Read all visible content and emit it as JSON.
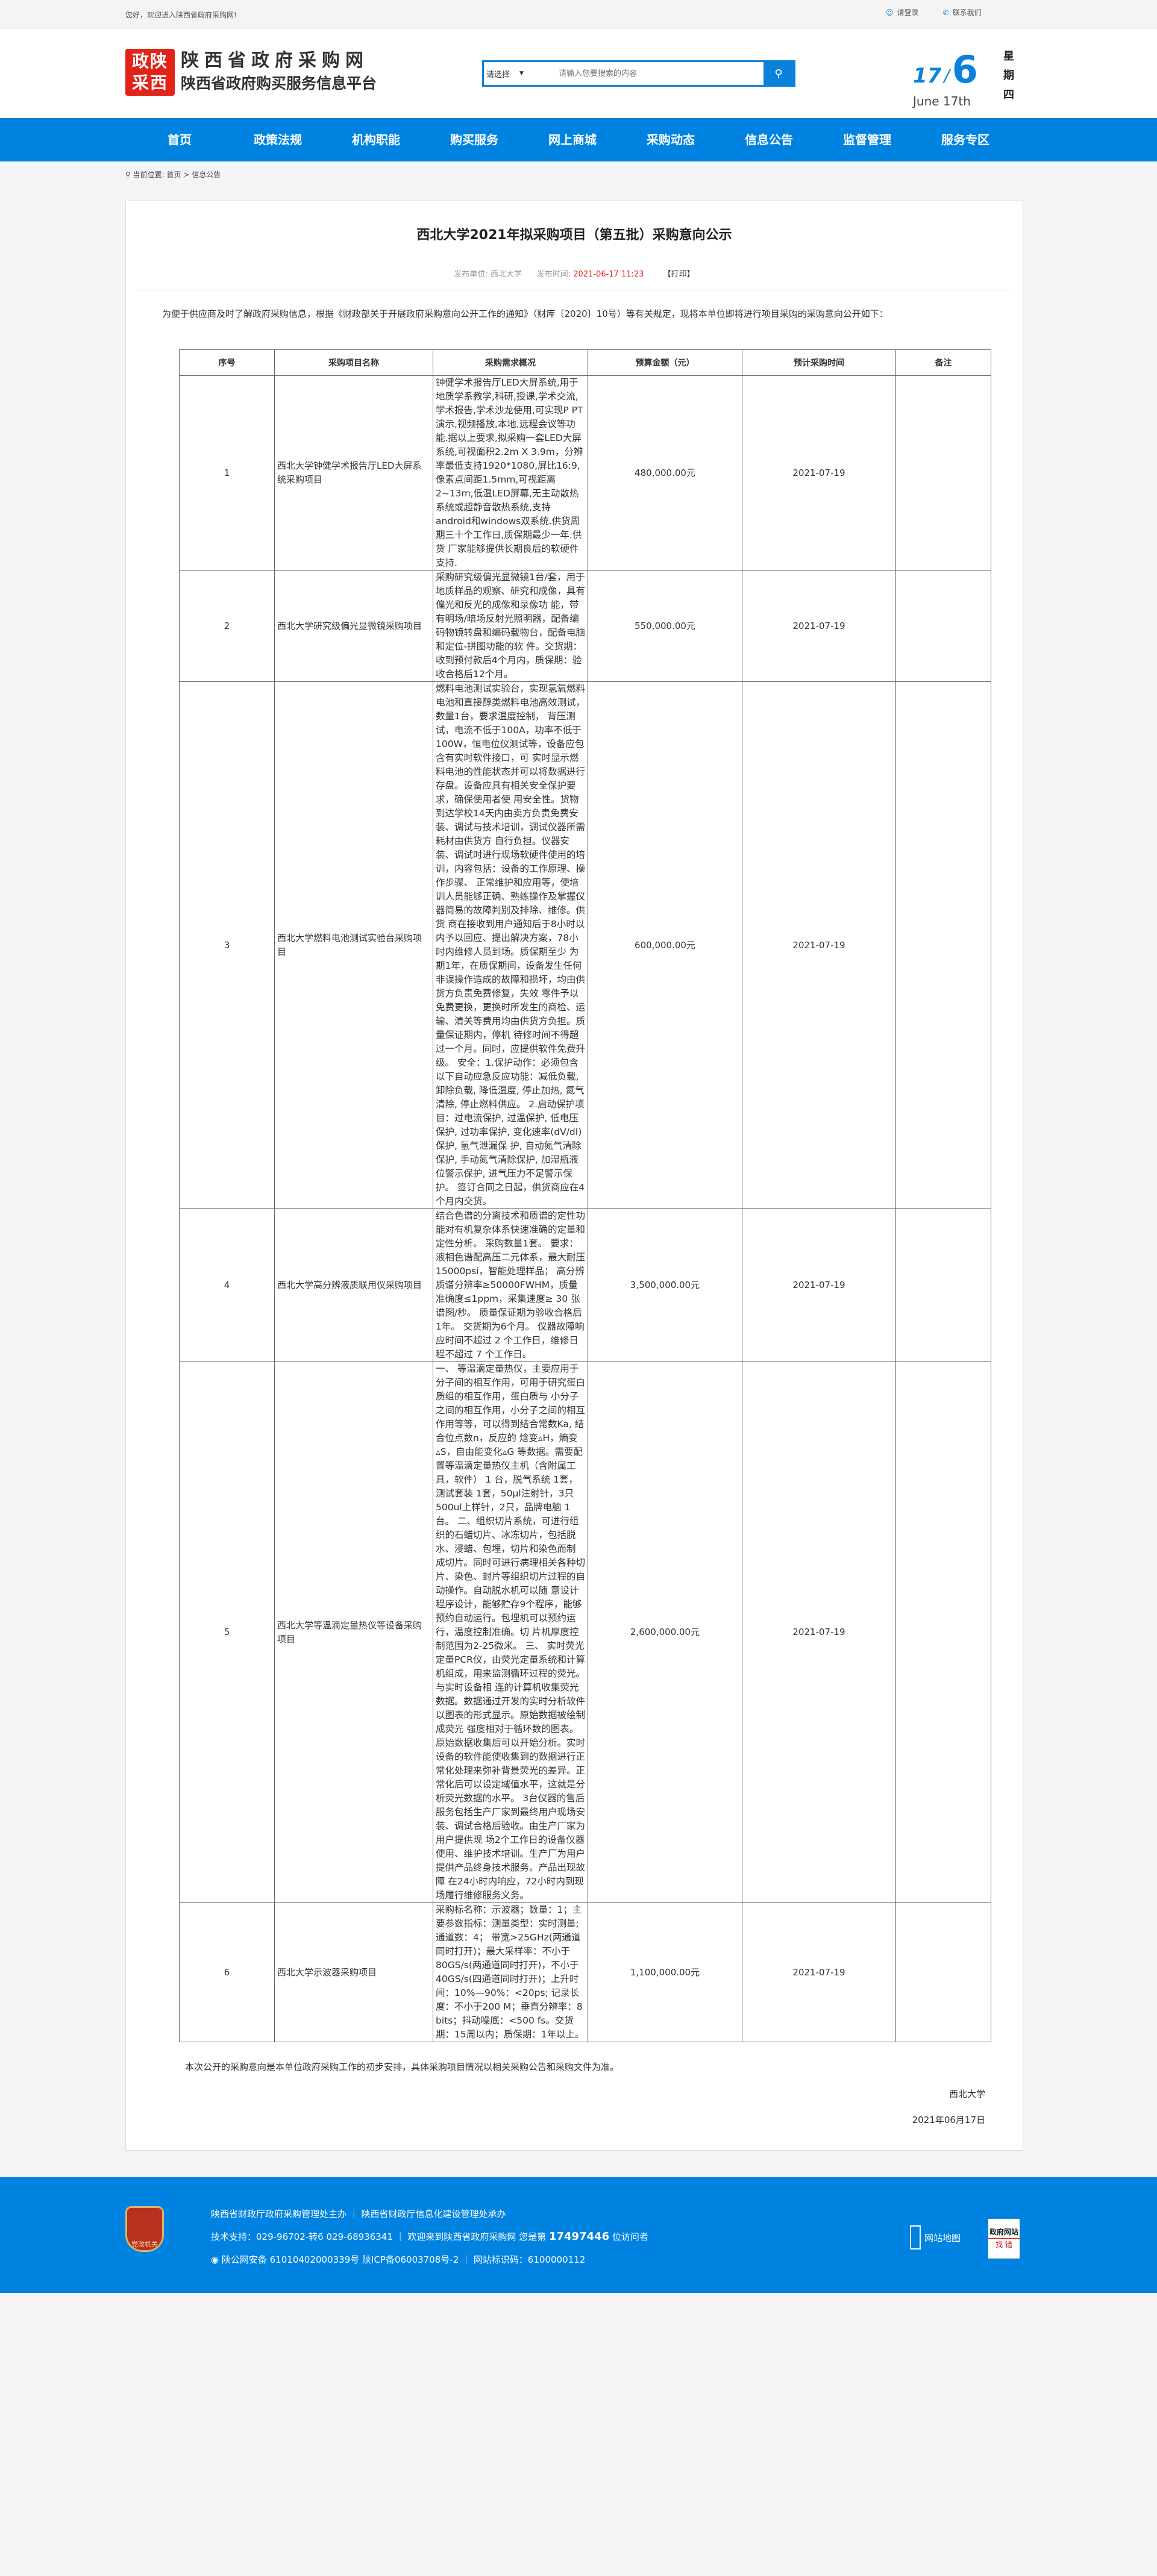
{
  "topbar": {
    "welcome": "您好，欢迎进入陕西省政府采购网!",
    "login": "请登录",
    "contact": "联系我们"
  },
  "header": {
    "logo_mark": "政陕采西",
    "logo_line1": "陕西省政府采购网",
    "logo_line2": "陕西省政府购买服务信息平台",
    "search_select": "请选择",
    "search_placeholder": "请输入您要搜索的内容",
    "date_day": "17",
    "date_month": "6",
    "date_sep": "/",
    "date_en": "June  17th",
    "weekday": "星期四"
  },
  "nav": [
    "首页",
    "政策法规",
    "机构职能",
    "购买服务",
    "网上商城",
    "采购动态",
    "信息公告",
    "监督管理",
    "服务专区"
  ],
  "breadcrumb": {
    "label": "当前位置:",
    "home": "首页",
    "sep": ">",
    "current": "信息公告"
  },
  "article": {
    "title": "西北大学2021年拟采购项目（第五批）采购意向公示",
    "publisher_label": "发布单位:",
    "publisher": "西北大学",
    "time_label": "发布时间:",
    "time": "2021-06-17 11:23",
    "print": "【打印】",
    "intro": "为便于供应商及时了解政府采购信息，根据《财政部关于开展政府采购意向公开工作的通知》（财库〔2020〕10号）等有关规定，现将本单位即将进行项目采购的采购意向公开如下：",
    "table": {
      "headers": [
        "序号",
        "采购项目名称",
        "采购需求概况",
        "预算金额（元）",
        "预计采购时间",
        "备注"
      ],
      "rows": [
        {
          "no": "1",
          "name": "西北大学钟健学术报告厅LED大屏系统采购项目",
          "desc": "钟健学术报告厅LED大屏系统,用于地质学系教学,科研,授课,学术交流,学术报告,学术沙龙使用,可实现P PT演示,视频播放,本地,远程会议等功能.据以上要求,拟采购一套LED大屏系统,可视面积2.2m X 3.9m，分辨率最低支持1920*1080,屏比16:9,像素点间距1.5mm,可视距离2~13m,低温LED屏幕,无主动散热 系统或超静音散热系统,支持android和windows双系统.供货周期三十个工作日,质保期最少一年.供货 厂家能够提供长期良后的软硬件支持.",
          "budget": "480,000.00元",
          "time": "2021-07-19",
          "remark": ""
        },
        {
          "no": "2",
          "name": "西北大学研究级偏光显微镜采购项目",
          "desc": "采购研究级偏光显微镜1台/套，用于地质样品的观察、研究和成像，具有偏光和反光的成像和录像功 能，带有明场/暗场反射光照明器，配备编码物镜转盘和编码载物台，配备电脑和定位-拼图功能的软 件。交货期：收到预付款后4个月内，质保期：验收合格后12个月。",
          "budget": "550,000.00元",
          "time": "2021-07-19",
          "remark": ""
        },
        {
          "no": "3",
          "name": "西北大学燃料电池测试实验台采购项目",
          "desc": "燃料电池测试实验台，实现氢氧燃料电池和直接醇类燃料电池高效测试，数量1台，要求温度控制， 背压测试，电流不低于100A，功率不低于100W，恒电位仪测试等，设备应包含有实时软件接口，可 实时显示燃料电池的性能状态并可以将数据进行存盘。设备应具有相关安全保护要求，确保使用者使 用安全性。货物到达学校14天内由卖方负责免费安装、调试与技术培训，调试仪器所需耗材由供货方 自行负担。仪器安装、调试时进行现场软硬件使用的培训，内容包括：设备的工作原理、操作步骤、 正常维护和应用等，使培训人员能够正确、熟练操作及掌握仪器简易的故障判别及排除、维修。供货 商在接收到用户通知后于8小时以内予以回应、提出解决方案，78小时内维修人员到场。质保期至少 为期1年，在质保期间，设备发生任何非误操作造成的故障和损坏，均由供货方负责免费修复，失效 零件予以免费更换，更换时所发生的商检、运输、清关等费用均由供货方负担。质量保证期内，停机 待修时间不得超过一个月。同时，应提供软件免费升级。 安全：1.保护动作：必须包含以下自动应急反应功能：减低负载, 卸除负载, 降低温度, 停止加热, 氮气 清除, 停止燃料供应。 2.启动保护项目：过电流保护, 过温保护, 低电压保护, 过功率保护, 变化速率(dV/dI)保护, 氢气泄漏保 护, 自动氮气清除保护, 手动氮气清除保护, 加湿瓶液位警示保护, 进气压力不足警示保护。 签订合同之日起，供货商应在4个月内交货。",
          "budget": "600,000.00元",
          "time": "2021-07-19",
          "remark": ""
        },
        {
          "no": "4",
          "name": "西北大学高分辨液质联用仪采购项目",
          "desc": "结合色谱的分离技术和质谱的定性功能对有机复杂体系快速准确的定量和定性分析。 采购数量1套。 要求：液相色谱配高压二元体系，最大耐压15000psi，智能处理样品； 高分辨质谱分辨率≥50000FWHM，质量准确度≤1ppm，采集速度≥ 30 张谱图/秒。 质量保证期为验收合格后1年。 交货期为6个月。 仪器故障响应时间不超过 2 个工作日，维修日程不超过 7 个工作日。",
          "budget": "3,500,000.00元",
          "time": "2021-07-19",
          "remark": ""
        },
        {
          "no": "5",
          "name": "西北大学等温滴定量热仪等设备采购项目",
          "desc": "一、 等温滴定量热仪，主要应用于分子间的相互作用，可用于研究蛋白质组的相互作用，蛋白质与 小分子之间的相互作用，小分子之间的相互作用等等，可以得到结合常数Ka, 结合位点数n，反应的 焓变▵H，熵变▵S，自由能变化▵G 等数据。需要配置等温滴定量热仪主机（含附属工具，软件） 1 台，脱气系统 1套，测试套装 1套，50μl注射针，3只500ul上样针，2只，品牌电脑 1台。 二、组织切片系统，可进行组织的石蜡切片、冰冻切片，包括脱水、浸蜡、包埋，切片和染色而制 成切片。同时可进行病理相关各种切片、染色、封片等组织切片过程的自动操作。自动脱水机可以随 意设计程序设计，能够贮存9个程序，能够预约自动运行。包埋机可以预约运行，温度控制准确。切 片机厚度控制范围为2-25微米。 三、 实时荧光定量PCR仪，由荧光定量系统和计算机组成，用来监测循环过程的荧光。与实时设备相 连的计算机收集荧光数据。数据通过开发的实时分析软件以图表的形式显示。原始数据被绘制成荧光 强度相对于循环数的图表。原始数据收集后可以开始分析。实时设备的软件能使收集到的数据进行正 常化处理来弥补背景荧光的差异。正常化后可以设定域值水平，这就是分析荧光数据的水平。 3台仪器的售后服务包括生产厂家到最终用户现场安装、调试合格后验收。由生产厂家为用户提供现 场2个工作日的设备仪器使用、维护技术培训。生产厂为用户提供产品终身技术服务。产品出现故障 在24小时内响应，72小时内到现场履行维修服务义务。",
          "budget": "2,600,000.00元",
          "time": "2021-07-19",
          "remark": ""
        },
        {
          "no": "6",
          "name": "西北大学示波器采购项目",
          "desc": "采购标名称：示波器；数量：1；主要参数指标：测量类型：实时测量;通道数：4； 带宽>25GHz(两通道同时打开)；最大采样率：不小于80GS/s(两通道同时打开)，不小于40GS/s(四通道同时打开)；上升时间：10%—90%：<20ps; 记录长度：不小于200 M；垂直分辨率：8 bits；抖动噪底：<500 fs。交货期：15周以内；质保期：1年以上。",
          "budget": "1,100,000.00元",
          "time": "2021-07-19",
          "remark": ""
        }
      ]
    },
    "note": "本次公开的采购意向是本单位政府采购工作的初步安排，具体采购项目情况以相关采购公告和采购文件为准。",
    "signer": "西北大学",
    "sign_date": "2021年06月17日"
  },
  "footer": {
    "emblem": "党政机关",
    "line1": "陕西省财政厅政府采购管理处主办 ｜ 陕西省财政厅信息化建设管理处承办",
    "line2_pre": "技术支持：029-96702-转6 029-68936341 ｜ 欢迎来到陕西省政府采购网 您是第 ",
    "visitors": "17497446",
    "line2_post": " 位访问者",
    "line3": "陕公网安备 61010402000339号  陕ICP备06003708号-2 ｜ 网站标识码：6100000112",
    "sitemap": "网站地图",
    "jc_title": "政府网站",
    "jc_sub": "找 错"
  },
  "colors": {
    "brand_blue": "#0083e0",
    "logo_red": "#e2231a",
    "time_red": "#e2231a"
  }
}
